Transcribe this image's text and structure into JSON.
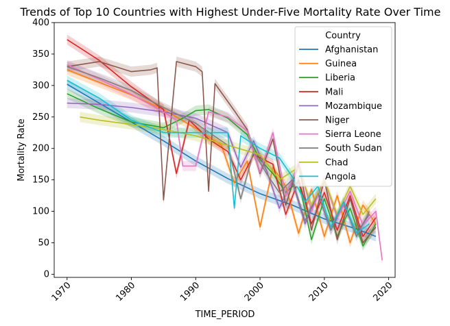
{
  "chart_data": {
    "type": "line",
    "title": "Trends of Top 10 Countries with Highest Under-Five Mortality Rate Over Time",
    "xlabel": "TIME_PERIOD",
    "ylabel": "Mortality Rate",
    "xlim": [
      1968,
      2021
    ],
    "ylim": [
      -5,
      400
    ],
    "xticks": [
      1970,
      1980,
      1990,
      2000,
      2010,
      2020
    ],
    "yticks": [
      0,
      50,
      100,
      150,
      200,
      250,
      300,
      350,
      400
    ],
    "grid": false,
    "legend": {
      "title": "Country",
      "placement": "top-right"
    },
    "series": [
      {
        "name": "Afghanistan",
        "color": "#1f77b4",
        "x": [
          1970,
          1975,
          1980,
          1985,
          1990,
          1995,
          2000,
          2005,
          2010,
          2015,
          2018
        ],
        "y": [
          302,
          272,
          242,
          212,
          180,
          152,
          128,
          110,
          88,
          72,
          60
        ]
      },
      {
        "name": "Guinea",
        "color": "#ff7f0e",
        "x": [
          1970,
          1975,
          1980,
          1985,
          1990,
          1994,
          1996,
          1998,
          2000,
          2002,
          2004,
          2006,
          2008,
          2010,
          2012,
          2014,
          2016,
          2018
        ],
        "y": [
          325,
          305,
          285,
          262,
          232,
          205,
          145,
          180,
          75,
          170,
          140,
          65,
          135,
          60,
          125,
          50,
          110,
          80
        ]
      },
      {
        "name": "Liberia",
        "color": "#2ca02c",
        "x": [
          1970,
          1975,
          1980,
          1985,
          1988,
          1990,
          1992,
          1995,
          1998,
          2000,
          2002,
          2004,
          2006,
          2008,
          2010,
          2012,
          2014,
          2016,
          2018
        ],
        "y": [
          287,
          263,
          242,
          233,
          248,
          260,
          262,
          248,
          222,
          182,
          160,
          130,
          148,
          55,
          120,
          60,
          105,
          45,
          80
        ]
      },
      {
        "name": "Mali",
        "color": "#d62728",
        "x": [
          1970,
          1975,
          1980,
          1985,
          1987,
          1989,
          1992,
          1995,
          1997,
          1999,
          2002,
          2004,
          2006,
          2008,
          2010,
          2012,
          2014,
          2016,
          2018
        ],
        "y": [
          373,
          340,
          298,
          262,
          160,
          245,
          215,
          195,
          150,
          190,
          175,
          95,
          150,
          80,
          130,
          70,
          125,
          60,
          90
        ]
      },
      {
        "name": "Mozambique",
        "color": "#9467bd",
        "x": [
          1970,
          1975,
          1980,
          1985,
          1990,
          1995,
          1997,
          1999,
          2001,
          2003,
          2005,
          2007,
          2009,
          2011,
          2013,
          2015,
          2017
        ],
        "y": [
          272,
          270,
          265,
          258,
          248,
          225,
          170,
          212,
          165,
          105,
          148,
          80,
          128,
          70,
          110,
          65,
          95
        ]
      },
      {
        "name": "Niger",
        "color": "#8c564b",
        "x": [
          1970,
          1975,
          1980,
          1983,
          1984,
          1985,
          1987,
          1990,
          1991,
          1992,
          1993,
          1996,
          1998,
          2000,
          2002,
          2004,
          2006,
          2008,
          2010,
          2012,
          2014,
          2016,
          2018
        ],
        "y": [
          330,
          338,
          322,
          325,
          328,
          118,
          338,
          330,
          322,
          132,
          303,
          260,
          230,
          160,
          215,
          110,
          175,
          70,
          150,
          55,
          120,
          50,
          75
        ]
      },
      {
        "name": "Sierra Leone",
        "color": "#e377c2",
        "x": [
          1970,
          1975,
          1980,
          1985,
          1987,
          1988,
          1990,
          1992,
          1995,
          1998,
          2000,
          2002,
          2004,
          2006,
          2008,
          2010,
          2012,
          2014,
          2016,
          2018,
          2019
        ],
        "y": [
          333,
          310,
          286,
          258,
          245,
          172,
          172,
          258,
          250,
          228,
          162,
          225,
          125,
          178,
          100,
          150,
          90,
          132,
          78,
          100,
          22
        ]
      },
      {
        "name": "South Sudan",
        "color": "#7f7f7f",
        "x": [
          1970,
          1975,
          1980,
          1985,
          1990,
          1995,
          1997,
          1999,
          2001,
          2003,
          2005,
          2007,
          2009,
          2011,
          2013,
          2015,
          2017
        ],
        "y": [
          330,
          312,
          292,
          265,
          240,
          205,
          120,
          195,
          160,
          130,
          150,
          85,
          130,
          70,
          115,
          60,
          100
        ]
      },
      {
        "name": "Chad",
        "color": "#bcbd22",
        "x": [
          1972,
          1975,
          1980,
          1985,
          1990,
          1995,
          2000,
          2003,
          2006,
          2008,
          2010,
          2012,
          2014,
          2016,
          2018
        ],
        "y": [
          250,
          245,
          238,
          230,
          220,
          205,
          190,
          150,
          170,
          110,
          150,
          95,
          140,
          95,
          120
        ]
      },
      {
        "name": "Angola",
        "color": "#17becf",
        "x": [
          1970,
          1975,
          1980,
          1985,
          1990,
          1995,
          1996,
          1997,
          2000,
          2003,
          2005,
          2007,
          2009,
          2011,
          2013,
          2015,
          2017
        ],
        "y": [
          308,
          280,
          245,
          225,
          225,
          225,
          105,
          220,
          200,
          185,
          155,
          115,
          140,
          75,
          115,
          65,
          80
        ]
      }
    ]
  }
}
